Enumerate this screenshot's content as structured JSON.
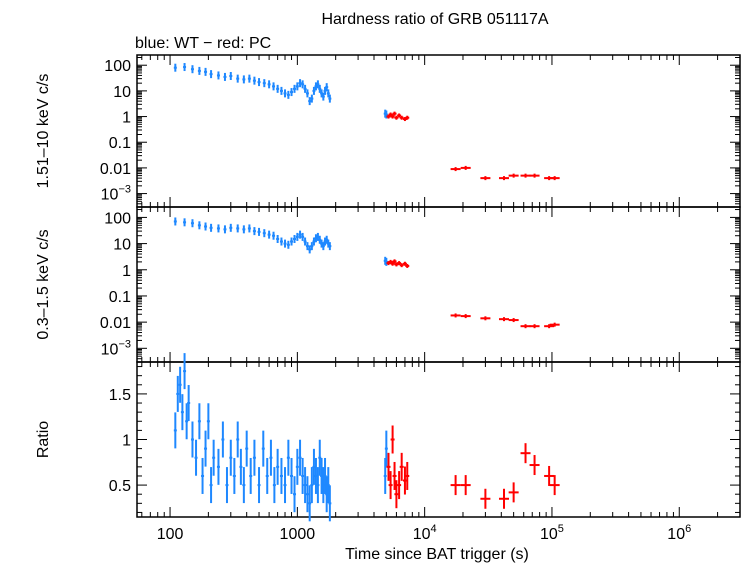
{
  "chart_data": {
    "type": "scatter",
    "title": "Hardness ratio of GRB 051117A",
    "subtitle": "blue: WT − red: PC",
    "xlabel": "Time since BAT trigger (s)",
    "xscale": "log",
    "xlim": [
      55,
      3000000
    ],
    "xticks": [
      {
        "value": 100,
        "label": "100"
      },
      {
        "value": 1000,
        "label": "1000"
      },
      {
        "value": 10000,
        "label": "10",
        "exp": "4"
      },
      {
        "value": 100000,
        "label": "10",
        "exp": "5"
      },
      {
        "value": 1000000,
        "label": "10",
        "exp": "6"
      }
    ],
    "colors": {
      "WT": "#1e88ff",
      "PC": "#ff0000",
      "axis": "#000000"
    },
    "panels": [
      {
        "id": "hard",
        "ylabel": "1.51–10 keV c/s",
        "yscale": "log",
        "ylim": [
          0.0003,
          250
        ],
        "yticks": [
          {
            "value": 100,
            "label": "100"
          },
          {
            "value": 10,
            "label": "10"
          },
          {
            "value": 1,
            "label": "1"
          },
          {
            "value": 0.1,
            "label": "0.1"
          },
          {
            "value": 0.01,
            "label": "0.01"
          },
          {
            "value": 0.001,
            "label": "10",
            "exp": "−3"
          }
        ],
        "series": [
          {
            "name": "WT",
            "color_key": "WT",
            "points": [
              [
                110,
                80
              ],
              [
                130,
                85
              ],
              [
                150,
                70
              ],
              [
                170,
                60
              ],
              [
                190,
                55
              ],
              [
                210,
                45
              ],
              [
                240,
                40
              ],
              [
                270,
                35
              ],
              [
                300,
                38
              ],
              [
                340,
                30
              ],
              [
                380,
                28
              ],
              [
                420,
                30
              ],
              [
                460,
                25
              ],
              [
                500,
                22
              ],
              [
                550,
                20
              ],
              [
                600,
                18
              ],
              [
                650,
                15
              ],
              [
                700,
                12
              ],
              [
                750,
                10
              ],
              [
                800,
                8
              ],
              [
                850,
                7
              ],
              [
                900,
                9
              ],
              [
                950,
                12
              ],
              [
                1000,
                15
              ],
              [
                1050,
                20
              ],
              [
                1100,
                18
              ],
              [
                1150,
                12
              ],
              [
                1200,
                8
              ],
              [
                1250,
                4
              ],
              [
                1300,
                5
              ],
              [
                1350,
                10
              ],
              [
                1400,
                15
              ],
              [
                1450,
                18
              ],
              [
                1500,
                12
              ],
              [
                1550,
                8
              ],
              [
                1600,
                6
              ],
              [
                1650,
                10
              ],
              [
                1700,
                14
              ],
              [
                1750,
                8
              ],
              [
                1800,
                5
              ],
              [
                4900,
                1.3
              ],
              [
                5000,
                1.2
              ]
            ]
          },
          {
            "name": "PC",
            "color_key": "PC",
            "points": [
              [
                5200,
                1.0
              ],
              [
                5400,
                1.2
              ],
              [
                5600,
                1.0
              ],
              [
                5800,
                1.3
              ],
              [
                6000,
                0.9
              ],
              [
                6300,
                1.1
              ],
              [
                6600,
                0.9
              ],
              [
                7000,
                0.8
              ],
              [
                7300,
                0.9
              ],
              [
                17500,
                0.009
              ],
              [
                21000,
                0.01
              ],
              [
                30000,
                0.004
              ],
              [
                42000,
                0.004
              ],
              [
                50000,
                0.005
              ],
              [
                62000,
                0.005
              ],
              [
                73000,
                0.005
              ],
              [
                95000,
                0.004
              ],
              [
                105000,
                0.004
              ]
            ]
          }
        ]
      },
      {
        "id": "soft",
        "ylabel": "0.3–1.5 keV c/s",
        "yscale": "log",
        "ylim": [
          0.0003,
          250
        ],
        "yticks": [
          {
            "value": 100,
            "label": "100"
          },
          {
            "value": 10,
            "label": "10"
          },
          {
            "value": 1,
            "label": "1"
          },
          {
            "value": 0.1,
            "label": "0.1"
          },
          {
            "value": 0.01,
            "label": "0.01"
          },
          {
            "value": 0.001,
            "label": "10",
            "exp": "−3"
          }
        ],
        "series": [
          {
            "name": "WT",
            "color_key": "WT",
            "points": [
              [
                110,
                70
              ],
              [
                130,
                65
              ],
              [
                150,
                60
              ],
              [
                170,
                50
              ],
              [
                190,
                45
              ],
              [
                210,
                40
              ],
              [
                240,
                38
              ],
              [
                270,
                35
              ],
              [
                300,
                40
              ],
              [
                340,
                38
              ],
              [
                380,
                35
              ],
              [
                420,
                38
              ],
              [
                460,
                30
              ],
              [
                500,
                28
              ],
              [
                550,
                25
              ],
              [
                600,
                22
              ],
              [
                650,
                20
              ],
              [
                700,
                15
              ],
              [
                750,
                12
              ],
              [
                800,
                10
              ],
              [
                850,
                9
              ],
              [
                900,
                12
              ],
              [
                950,
                15
              ],
              [
                1000,
                18
              ],
              [
                1050,
                22
              ],
              [
                1100,
                18
              ],
              [
                1150,
                12
              ],
              [
                1200,
                8
              ],
              [
                1250,
                6
              ],
              [
                1300,
                8
              ],
              [
                1350,
                12
              ],
              [
                1400,
                16
              ],
              [
                1450,
                18
              ],
              [
                1500,
                14
              ],
              [
                1550,
                10
              ],
              [
                1600,
                8
              ],
              [
                1650,
                12
              ],
              [
                1700,
                14
              ],
              [
                1750,
                10
              ],
              [
                1800,
                8
              ],
              [
                4900,
                2.2
              ],
              [
                5000,
                2.0
              ]
            ]
          },
          {
            "name": "PC",
            "color_key": "PC",
            "points": [
              [
                5200,
                1.8
              ],
              [
                5400,
                2.0
              ],
              [
                5600,
                1.7
              ],
              [
                5800,
                2.1
              ],
              [
                6000,
                1.6
              ],
              [
                6300,
                1.8
              ],
              [
                6600,
                1.5
              ],
              [
                7000,
                1.7
              ],
              [
                7300,
                1.4
              ],
              [
                17500,
                0.018
              ],
              [
                21000,
                0.017
              ],
              [
                30000,
                0.014
              ],
              [
                42000,
                0.013
              ],
              [
                50000,
                0.012
              ],
              [
                62000,
                0.007
              ],
              [
                73000,
                0.007
              ],
              [
                95000,
                0.007
              ],
              [
                105000,
                0.008
              ]
            ]
          }
        ]
      },
      {
        "id": "ratio",
        "ylabel": "Ratio",
        "yscale": "linear",
        "ylim": [
          0.15,
          1.85
        ],
        "yticks": [
          {
            "value": 1.5,
            "label": "1.5"
          },
          {
            "value": 1,
            "label": "1"
          },
          {
            "value": 0.5,
            "label": "0.5"
          }
        ],
        "series": [
          {
            "name": "WT",
            "color_key": "WT",
            "points": [
              [
                110,
                1.1
              ],
              [
                115,
                1.5
              ],
              [
                120,
                1.6
              ],
              [
                125,
                1.3
              ],
              [
                130,
                1.75
              ],
              [
                135,
                1.2
              ],
              [
                140,
                1.4
              ],
              [
                150,
                1.0
              ],
              [
                160,
                0.8
              ],
              [
                170,
                1.2
              ],
              [
                180,
                0.6
              ],
              [
                190,
                0.9
              ],
              [
                200,
                1.2
              ],
              [
                210,
                0.5
              ],
              [
                220,
                0.8
              ],
              [
                240,
                0.7
              ],
              [
                260,
                1.0
              ],
              [
                280,
                0.5
              ],
              [
                300,
                0.8
              ],
              [
                320,
                0.6
              ],
              [
                340,
                1.0
              ],
              [
                360,
                0.7
              ],
              [
                380,
                0.5
              ],
              [
                400,
                0.9
              ],
              [
                430,
                0.6
              ],
              [
                460,
                0.8
              ],
              [
                500,
                0.5
              ],
              [
                540,
                0.9
              ],
              [
                580,
                0.6
              ],
              [
                620,
                0.8
              ],
              [
                660,
                0.5
              ],
              [
                700,
                0.7
              ],
              [
                750,
                0.6
              ],
              [
                800,
                0.5
              ],
              [
                850,
                0.8
              ],
              [
                900,
                0.6
              ],
              [
                950,
                0.4
              ],
              [
                1000,
                0.7
              ],
              [
                1050,
                0.8
              ],
              [
                1100,
                0.6
              ],
              [
                1150,
                0.5
              ],
              [
                1200,
                0.4
              ],
              [
                1250,
                0.3
              ],
              [
                1300,
                0.5
              ],
              [
                1350,
                0.7
              ],
              [
                1400,
                0.6
              ],
              [
                1450,
                0.5
              ],
              [
                1500,
                0.8
              ],
              [
                1550,
                0.6
              ],
              [
                1600,
                0.5
              ],
              [
                1650,
                0.6
              ],
              [
                1700,
                0.4
              ],
              [
                1750,
                0.5
              ],
              [
                1800,
                0.3
              ],
              [
                4900,
                0.6
              ],
              [
                5000,
                0.9
              ]
            ]
          },
          {
            "name": "PC",
            "color_key": "PC",
            "points": [
              [
                5200,
                0.7
              ],
              [
                5400,
                0.5
              ],
              [
                5600,
                1.0
              ],
              [
                5800,
                0.6
              ],
              [
                6000,
                0.4
              ],
              [
                6300,
                0.5
              ],
              [
                6600,
                0.7
              ],
              [
                7000,
                0.55
              ],
              [
                7300,
                0.6
              ],
              [
                17500,
                0.5
              ],
              [
                21000,
                0.5
              ],
              [
                30000,
                0.35
              ],
              [
                42000,
                0.35
              ],
              [
                50000,
                0.42
              ],
              [
                62000,
                0.85
              ],
              [
                73000,
                0.72
              ],
              [
                95000,
                0.6
              ],
              [
                105000,
                0.5
              ]
            ]
          }
        ]
      }
    ]
  }
}
